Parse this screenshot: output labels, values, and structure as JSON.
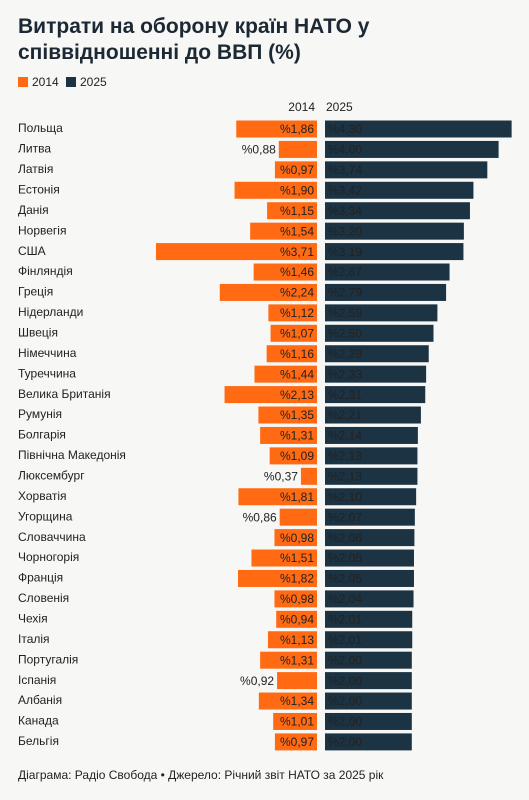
{
  "chart_data": {
    "type": "butterfly-bar",
    "title": "Витрати на оборону країн НАТО у співвідношенні до ВВП (%)",
    "categories": [
      "Польща",
      "Литва",
      "Латвія",
      "Естонія",
      "Данія",
      "Норвегія",
      "США",
      "Фінляндія",
      "Греція",
      "Нідерланди",
      "Швеція",
      "Німеччина",
      "Туреччина",
      "Велика Британія",
      "Румунія",
      "Болгарія",
      "Північна Македонія",
      "Люксембург",
      "Хорватія",
      "Угорщина",
      "Словаччина",
      "Чорногорія",
      "Франція",
      "Словенія",
      "Чехія",
      "Італія",
      "Португалія",
      "Іспанія",
      "Албанія",
      "Канада",
      "Бельгія"
    ],
    "series": [
      {
        "name": "2014",
        "color": "#ff6a13",
        "values": [
          1.86,
          0.88,
          0.97,
          1.9,
          1.15,
          1.54,
          3.71,
          1.46,
          2.24,
          1.12,
          1.07,
          1.16,
          1.44,
          2.13,
          1.35,
          1.31,
          1.09,
          0.37,
          1.81,
          0.86,
          0.98,
          1.51,
          1.82,
          0.98,
          0.94,
          1.13,
          1.31,
          0.92,
          1.34,
          1.01,
          0.97
        ],
        "value_labels": [
          "%1,86",
          "%0,88",
          "%0,97",
          "%1,90",
          "%1,15",
          "%1,54",
          "%3,71",
          "%1,46",
          "%2,24",
          "%1,12",
          "%1,07",
          "%1,16",
          "%1,44",
          "%2,13",
          "%1,35",
          "%1,31",
          "%1,09",
          "%0,37",
          "%1,81",
          "%0,86",
          "%0,98",
          "%1,51",
          "%1,82",
          "%0,98",
          "%0,94",
          "%1,13",
          "%1,31",
          "%0,92",
          "%1,34",
          "%1,01",
          "%0,97"
        ]
      },
      {
        "name": "2025",
        "color": "#1c3343",
        "values": [
          4.3,
          4.0,
          3.74,
          3.42,
          3.34,
          3.2,
          3.19,
          2.87,
          2.79,
          2.59,
          2.5,
          2.39,
          2.33,
          2.31,
          2.21,
          2.14,
          2.13,
          2.13,
          2.1,
          2.07,
          2.06,
          2.05,
          2.05,
          2.04,
          2.01,
          2.01,
          2.0,
          2.0,
          2.0,
          2.0,
          2.0
        ],
        "value_labels": [
          "%4,30",
          "%4,00",
          "%3,74",
          "%3,42",
          "%3,34",
          "%3,20",
          "%3,19",
          "%2,87",
          "%2,79",
          "%2,59",
          "%2,50",
          "%2,39",
          "%2,33",
          "%2,31",
          "%2,21",
          "%2,14",
          "%2,13",
          "%2,13",
          "%2,10",
          "%2,07",
          "%2,06",
          "%2,05",
          "%2,05",
          "%2,04",
          "%2,01",
          "%2,01",
          "%2,00",
          "%2,00",
          "%2,00",
          "%2,00",
          "%2,00"
        ]
      }
    ],
    "source": "Діаграма: Радіо Свобода • Джерело: Річний звіт НАТО за 2025 рік"
  }
}
